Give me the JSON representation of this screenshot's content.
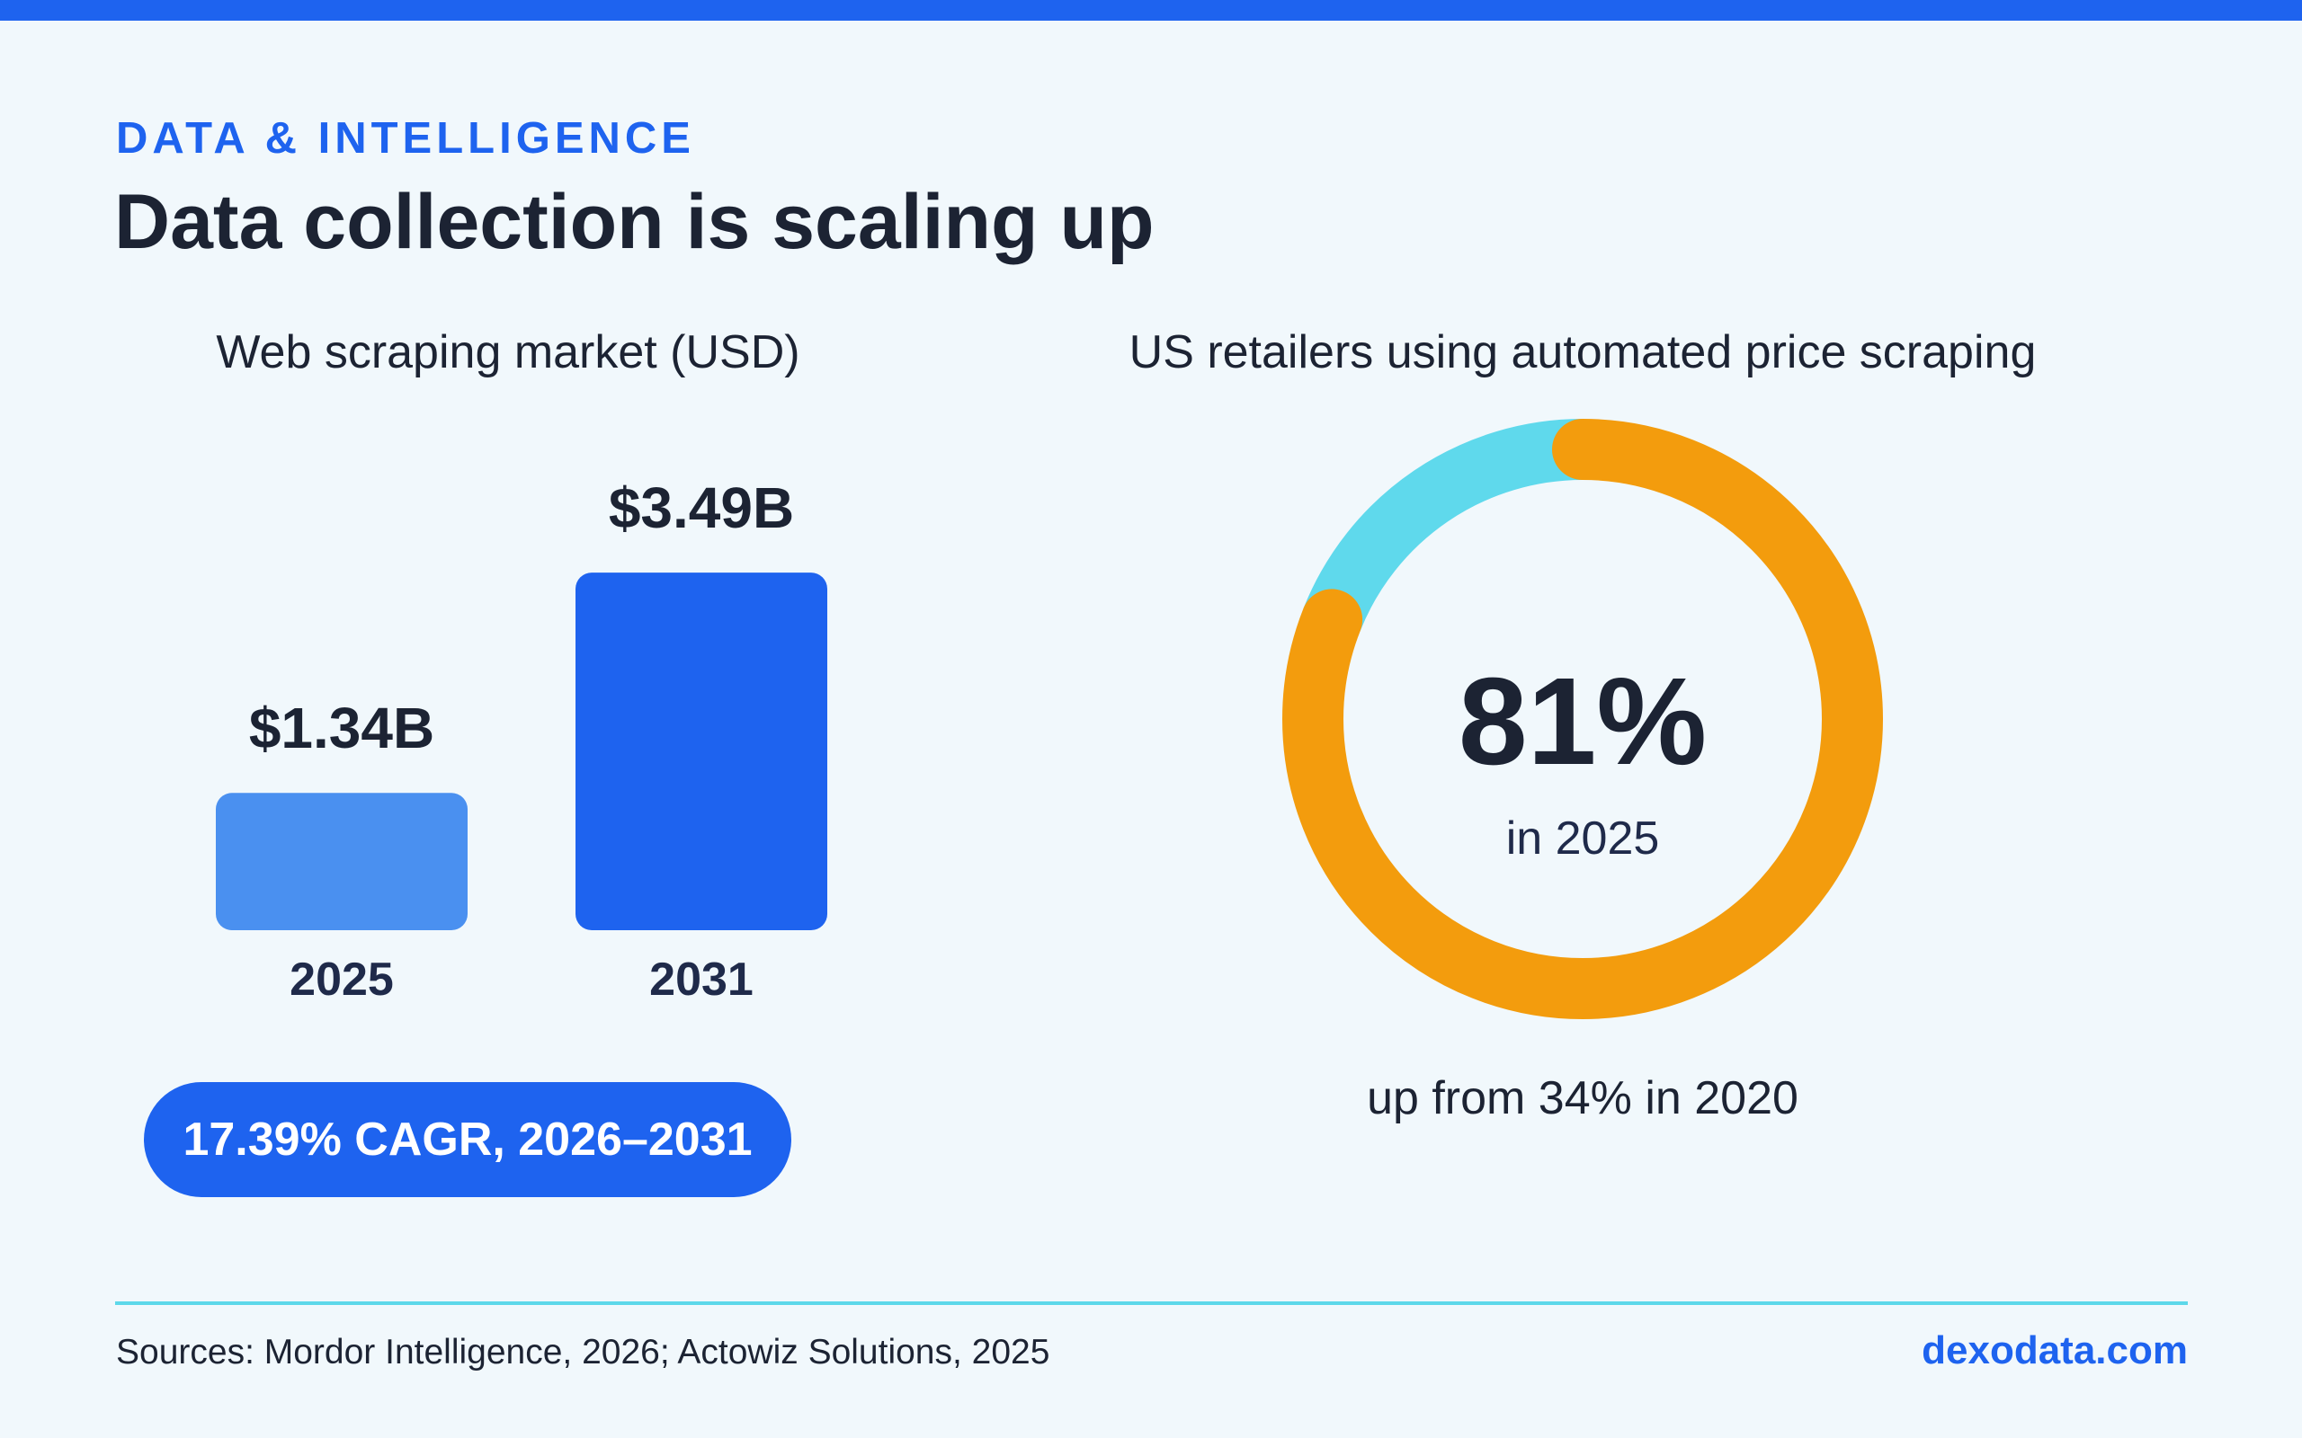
{
  "header": {
    "eyebrow": "DATA & INTELLIGENCE",
    "title": "Data collection is scaling up"
  },
  "colors": {
    "accent": "#1e63ef",
    "bar_light": "#4a90f0",
    "bar_dark": "#1e63ef",
    "donut_main": "#f39c0d",
    "donut_rest": "#5fd9ec",
    "divider": "#5dd8ea"
  },
  "chart_data": [
    {
      "type": "bar",
      "title": "Web scraping market (USD)",
      "categories": [
        "2025",
        "2031"
      ],
      "values": [
        1.34,
        3.49
      ],
      "value_labels": [
        "$1.34B",
        "$3.49B"
      ],
      "unit": "USD billions",
      "annotation": "17.39% CAGR, 2026–2031"
    },
    {
      "type": "pie",
      "title": "US retailers using automated price scraping",
      "values": [
        81,
        19
      ],
      "center_label": "81%",
      "center_sublabel": "in 2025",
      "footnote": "up from 34% in 2020"
    }
  ],
  "footer": {
    "sources": "Sources: Mordor Intelligence, 2026; Actowiz Solutions, 2025",
    "brand": "dexodata.com"
  }
}
